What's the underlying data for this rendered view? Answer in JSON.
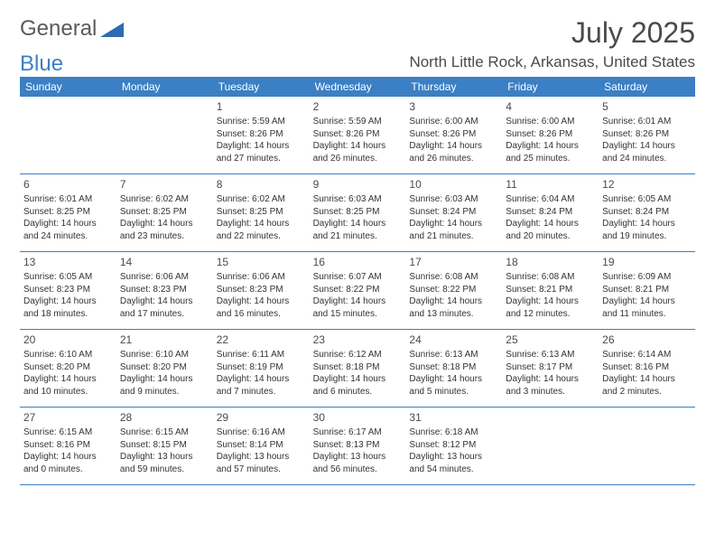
{
  "logo": {
    "text1": "General",
    "text2": "Blue"
  },
  "title": "July 2025",
  "subtitle": "North Little Rock, Arkansas, United States",
  "colors": {
    "header_bg": "#3b7fc4",
    "header_fg": "#ffffff",
    "border": "#3b7fc4",
    "text": "#333333",
    "title": "#4a4a4a"
  },
  "day_headers": [
    "Sunday",
    "Monday",
    "Tuesday",
    "Wednesday",
    "Thursday",
    "Friday",
    "Saturday"
  ],
  "weeks": [
    [
      null,
      null,
      {
        "n": "1",
        "sr": "5:59 AM",
        "ss": "8:26 PM",
        "dl": "14 hours and 27 minutes."
      },
      {
        "n": "2",
        "sr": "5:59 AM",
        "ss": "8:26 PM",
        "dl": "14 hours and 26 minutes."
      },
      {
        "n": "3",
        "sr": "6:00 AM",
        "ss": "8:26 PM",
        "dl": "14 hours and 26 minutes."
      },
      {
        "n": "4",
        "sr": "6:00 AM",
        "ss": "8:26 PM",
        "dl": "14 hours and 25 minutes."
      },
      {
        "n": "5",
        "sr": "6:01 AM",
        "ss": "8:26 PM",
        "dl": "14 hours and 24 minutes."
      }
    ],
    [
      {
        "n": "6",
        "sr": "6:01 AM",
        "ss": "8:25 PM",
        "dl": "14 hours and 24 minutes."
      },
      {
        "n": "7",
        "sr": "6:02 AM",
        "ss": "8:25 PM",
        "dl": "14 hours and 23 minutes."
      },
      {
        "n": "8",
        "sr": "6:02 AM",
        "ss": "8:25 PM",
        "dl": "14 hours and 22 minutes."
      },
      {
        "n": "9",
        "sr": "6:03 AM",
        "ss": "8:25 PM",
        "dl": "14 hours and 21 minutes."
      },
      {
        "n": "10",
        "sr": "6:03 AM",
        "ss": "8:24 PM",
        "dl": "14 hours and 21 minutes."
      },
      {
        "n": "11",
        "sr": "6:04 AM",
        "ss": "8:24 PM",
        "dl": "14 hours and 20 minutes."
      },
      {
        "n": "12",
        "sr": "6:05 AM",
        "ss": "8:24 PM",
        "dl": "14 hours and 19 minutes."
      }
    ],
    [
      {
        "n": "13",
        "sr": "6:05 AM",
        "ss": "8:23 PM",
        "dl": "14 hours and 18 minutes."
      },
      {
        "n": "14",
        "sr": "6:06 AM",
        "ss": "8:23 PM",
        "dl": "14 hours and 17 minutes."
      },
      {
        "n": "15",
        "sr": "6:06 AM",
        "ss": "8:23 PM",
        "dl": "14 hours and 16 minutes."
      },
      {
        "n": "16",
        "sr": "6:07 AM",
        "ss": "8:22 PM",
        "dl": "14 hours and 15 minutes."
      },
      {
        "n": "17",
        "sr": "6:08 AM",
        "ss": "8:22 PM",
        "dl": "14 hours and 13 minutes."
      },
      {
        "n": "18",
        "sr": "6:08 AM",
        "ss": "8:21 PM",
        "dl": "14 hours and 12 minutes."
      },
      {
        "n": "19",
        "sr": "6:09 AM",
        "ss": "8:21 PM",
        "dl": "14 hours and 11 minutes."
      }
    ],
    [
      {
        "n": "20",
        "sr": "6:10 AM",
        "ss": "8:20 PM",
        "dl": "14 hours and 10 minutes."
      },
      {
        "n": "21",
        "sr": "6:10 AM",
        "ss": "8:20 PM",
        "dl": "14 hours and 9 minutes."
      },
      {
        "n": "22",
        "sr": "6:11 AM",
        "ss": "8:19 PM",
        "dl": "14 hours and 7 minutes."
      },
      {
        "n": "23",
        "sr": "6:12 AM",
        "ss": "8:18 PM",
        "dl": "14 hours and 6 minutes."
      },
      {
        "n": "24",
        "sr": "6:13 AM",
        "ss": "8:18 PM",
        "dl": "14 hours and 5 minutes."
      },
      {
        "n": "25",
        "sr": "6:13 AM",
        "ss": "8:17 PM",
        "dl": "14 hours and 3 minutes."
      },
      {
        "n": "26",
        "sr": "6:14 AM",
        "ss": "8:16 PM",
        "dl": "14 hours and 2 minutes."
      }
    ],
    [
      {
        "n": "27",
        "sr": "6:15 AM",
        "ss": "8:16 PM",
        "dl": "14 hours and 0 minutes."
      },
      {
        "n": "28",
        "sr": "6:15 AM",
        "ss": "8:15 PM",
        "dl": "13 hours and 59 minutes."
      },
      {
        "n": "29",
        "sr": "6:16 AM",
        "ss": "8:14 PM",
        "dl": "13 hours and 57 minutes."
      },
      {
        "n": "30",
        "sr": "6:17 AM",
        "ss": "8:13 PM",
        "dl": "13 hours and 56 minutes."
      },
      {
        "n": "31",
        "sr": "6:18 AM",
        "ss": "8:12 PM",
        "dl": "13 hours and 54 minutes."
      },
      null,
      null
    ]
  ],
  "labels": {
    "sunrise": "Sunrise:",
    "sunset": "Sunset:",
    "daylight": "Daylight:"
  }
}
